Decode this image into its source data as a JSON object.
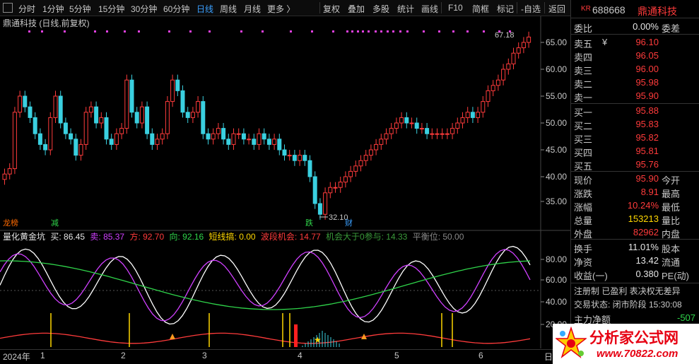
{
  "toolbar": {
    "periods": [
      "分时",
      "1分钟",
      "5分钟",
      "15分钟",
      "30分钟",
      "60分钟",
      "日线",
      "周线",
      "月线",
      "更多 〉"
    ],
    "active": "日线",
    "tools": [
      "复权",
      "叠加",
      "多股",
      "统计",
      "画线",
      "F10",
      "简框",
      "标记",
      "-自选",
      "返回"
    ]
  },
  "chart": {
    "title": "鼎通科技 (日线,前复权)",
    "high_label": "67.18",
    "low_label": "32.10",
    "y_ticks": [
      "65.00",
      "60.00",
      "55.00",
      "50.00",
      "45.00",
      "40.00",
      "35.00"
    ],
    "markers": {
      "bang": "龙榜",
      "jian": "减",
      "die": "跌",
      "cai": "财"
    }
  },
  "indicator": {
    "name": "量化黄金坑",
    "buy": "买: 86.45",
    "sell": "卖: 85.37",
    "fang": "方: 92.70",
    "xiang": "向: 92.16",
    "short": "短线搞: 0.00",
    "band": "波段机会: 14.77",
    "chance": "机会大于0参与: 14.33",
    "balance": "平衡位: 50.00",
    "y_ticks": [
      "80.00",
      "60.00",
      "40.00",
      "20.00"
    ]
  },
  "dates": [
    "2024年",
    "1",
    "2",
    "3",
    "4",
    "5",
    "6",
    "日"
  ],
  "quote": {
    "kr": "KR",
    "code": "688668",
    "name": "鼎通科技",
    "wei_bi_label": "委比",
    "wei_bi": "0.00%",
    "wei_cha_label": "委差",
    "asks": [
      {
        "label": "卖五",
        "price": "96.10",
        "mark": "¥"
      },
      {
        "label": "卖四",
        "price": "96.05",
        "mark": ""
      },
      {
        "label": "卖三",
        "price": "96.00",
        "mark": ""
      },
      {
        "label": "卖二",
        "price": "95.98",
        "mark": ""
      },
      {
        "label": "卖一",
        "price": "95.90",
        "mark": ""
      }
    ],
    "bids": [
      {
        "label": "买一",
        "price": "95.88"
      },
      {
        "label": "买二",
        "price": "95.83"
      },
      {
        "label": "买三",
        "price": "95.82"
      },
      {
        "label": "买四",
        "price": "95.81"
      },
      {
        "label": "买五",
        "price": "95.76"
      }
    ],
    "stats": [
      {
        "k": "现价",
        "v": "95.90",
        "k2": "今开",
        "c": "red"
      },
      {
        "k": "涨跌",
        "v": "8.91",
        "k2": "最高",
        "c": "red"
      },
      {
        "k": "涨幅",
        "v": "10.24%",
        "k2": "最低",
        "c": "red"
      },
      {
        "k": "总量",
        "v": "153213",
        "k2": "量比",
        "c": "yellow"
      },
      {
        "k": "外盘",
        "v": "82962",
        "k2": "内盘",
        "c": "red"
      }
    ],
    "stats2": [
      {
        "k": "换手",
        "v": "11.01%",
        "k2": "股本"
      },
      {
        "k": "净资",
        "v": "13.42",
        "k2": "流通"
      },
      {
        "k": "收益(一)",
        "v": "0.380",
        "k2": "PE(动)"
      }
    ],
    "tags": "注册制 已盈利 表决权无差异",
    "state": "交易状态: 闭市阶段 15:30:08",
    "net_label": "主力净额",
    "net_value": "-507"
  },
  "watermark": {
    "title": "分析家公式网",
    "url": "www.70822.com"
  }
}
